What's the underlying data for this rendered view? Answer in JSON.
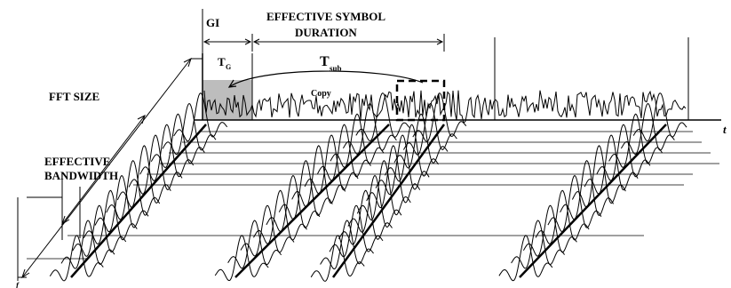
{
  "labels": {
    "gi": "GI",
    "effective_symbol_line1": "EFFECTIVE SYMBOL",
    "effective_symbol_line2": "DURATION",
    "tg_main": "T",
    "tg_sub": "G",
    "tsub_main": "T",
    "tsub_sub": "sub",
    "copy": "Copy",
    "fft_size": "FFT SIZE",
    "effective_bandwidth_line1": "EFFECTIVE",
    "effective_bandwidth_line2": "BANDWIDTH",
    "time_axis": "t",
    "freq_axis": "f"
  },
  "colors": {
    "ink": "#000000",
    "guard_fill": "#bdbdbd",
    "background": "#ffffff"
  }
}
